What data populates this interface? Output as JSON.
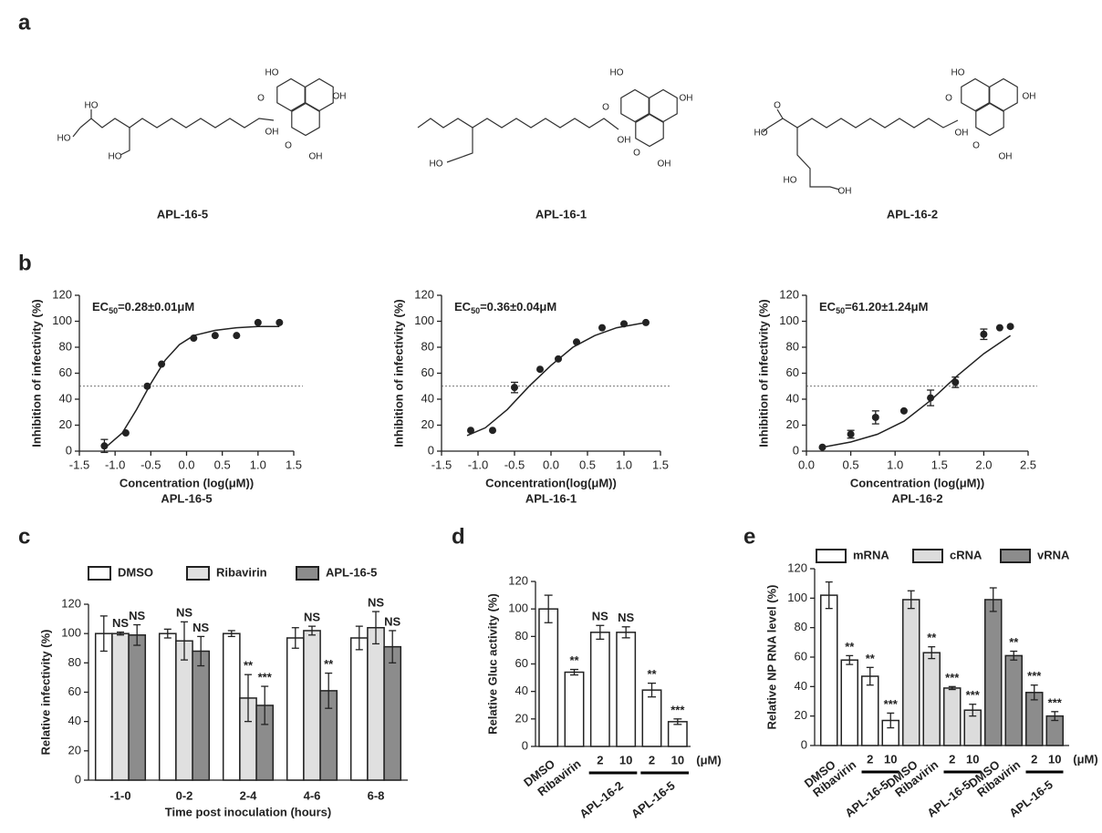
{
  "panel_labels": [
    "a",
    "b",
    "c",
    "d",
    "e"
  ],
  "structures": [
    {
      "name": "APL-16-5",
      "atoms": [
        "HO",
        "O",
        "OH",
        "OH",
        "O",
        "OH",
        "HO",
        "HO",
        "HO"
      ]
    },
    {
      "name": "APL-16-1",
      "atoms": [
        "HO",
        "O",
        "OH",
        "OH",
        "O",
        "OH",
        "HO"
      ]
    },
    {
      "name": "APL-16-2",
      "atoms": [
        "HO",
        "O",
        "OH",
        "OH",
        "O",
        "OH",
        "HO",
        "O",
        "HO",
        "OH"
      ]
    }
  ],
  "chart_data": [
    {
      "type": "scatter",
      "annotation": {
        "prefix": "EC",
        "subscript": "50",
        "text": "=0.28±0.01μM"
      },
      "ylabel": "Inhibition of infectivity (%)",
      "xlabel": "Concentration (log(μM))",
      "subtitle": "APL-16-5",
      "x": [
        -1.15,
        -0.85,
        -0.55,
        -0.35,
        0.1,
        0.4,
        0.7,
        1.0,
        1.3
      ],
      "values": [
        4,
        14,
        50,
        67,
        87,
        89,
        89,
        99,
        99
      ],
      "errors": [
        5,
        null,
        null,
        null,
        null,
        null,
        null,
        null,
        null
      ],
      "fit": {
        "x": [
          -1.15,
          -0.9,
          -0.7,
          -0.5,
          -0.3,
          -0.1,
          0.1,
          0.4,
          0.7,
          1.0,
          1.3
        ],
        "values": [
          2,
          14,
          32,
          52,
          70,
          82,
          89,
          93,
          95,
          96,
          96
        ]
      },
      "reference_line": 50,
      "color": "#222222",
      "xlim": [
        -1.5,
        1.5
      ],
      "xticks": [
        -1.5,
        {
          "value": -1,
          "label": "-1.0"
        },
        -0.5,
        {
          "value": 0,
          "label": "0.0"
        },
        0.5,
        {
          "value": 1,
          "label": "1.0"
        },
        1.5
      ],
      "ylim": [
        0,
        120
      ],
      "yticks": [
        0,
        20,
        40,
        60,
        80,
        100,
        120
      ]
    },
    {
      "type": "scatter",
      "annotation": {
        "prefix": "EC",
        "subscript": "50",
        "text": "=0.36±0.04μM"
      },
      "ylabel": "Inhibition of infectivity (%)",
      "xlabel": "Concentration(log(μM))",
      "subtitle": "APL-16-1",
      "x": [
        -1.1,
        -0.8,
        -0.5,
        -0.15,
        0.1,
        0.35,
        0.7,
        1.0,
        1.3
      ],
      "values": [
        16,
        16,
        49,
        63,
        71,
        84,
        95,
        98,
        99
      ],
      "errors": [
        null,
        null,
        4,
        null,
        null,
        null,
        null,
        null,
        null
      ],
      "fit": {
        "x": [
          -1.15,
          -0.9,
          -0.6,
          -0.3,
          0,
          0.3,
          0.6,
          0.9,
          1.3
        ],
        "values": [
          12,
          18,
          32,
          50,
          66,
          80,
          89,
          95,
          99
        ]
      },
      "reference_line": 50,
      "color": "#222222",
      "xlim": [
        -1.5,
        1.5
      ],
      "xticks": [
        -1.5,
        {
          "value": -1,
          "label": "-1.0"
        },
        -0.5,
        {
          "value": 0,
          "label": "0.0"
        },
        0.5,
        {
          "value": 1,
          "label": "1.0"
        },
        1.5
      ],
      "ylim": [
        0,
        120
      ],
      "yticks": [
        0,
        20,
        40,
        60,
        80,
        100,
        120
      ]
    },
    {
      "type": "scatter",
      "annotation": {
        "prefix": "EC",
        "subscript": "50",
        "text": "=61.20±1.24μM"
      },
      "ylabel": "Inhibition of infectivity (%)",
      "xlabel": "Concentration (log(μM))",
      "subtitle": "APL-16-2",
      "x": [
        0.18,
        0.5,
        0.78,
        1.1,
        1.4,
        1.68,
        2.0,
        2.18,
        2.3
      ],
      "values": [
        3,
        13,
        26,
        31,
        41,
        53,
        90,
        95,
        96
      ],
      "errors": [
        null,
        3,
        5,
        null,
        6,
        4,
        4,
        null,
        null
      ],
      "fit": {
        "x": [
          0.18,
          0.5,
          0.8,
          1.1,
          1.4,
          1.7,
          2.0,
          2.3
        ],
        "values": [
          3,
          7,
          13,
          23,
          39,
          58,
          75,
          89
        ]
      },
      "reference_line": 50,
      "color": "#222222",
      "xlim": [
        0,
        2.5
      ],
      "xticks": [
        {
          "value": 0,
          "label": "0.0"
        },
        0.5,
        {
          "value": 1,
          "label": "1.0"
        },
        1.5,
        {
          "value": 2,
          "label": "2.0"
        },
        2.5
      ],
      "ylim": [
        0,
        120
      ],
      "yticks": [
        0,
        20,
        40,
        60,
        80,
        100,
        120
      ]
    },
    {
      "type": "bar",
      "layout": "grouped",
      "ylabel": "Relative infectivity (%)",
      "xlabel": "Time post inoculation (hours)",
      "categories": [
        "-1-0",
        "0-2",
        "2-4",
        "4-6",
        "6-8"
      ],
      "series": [
        {
          "name": "DMSO",
          "color": "#ffffff",
          "values": [
            100,
            100,
            100,
            97,
            97
          ],
          "errors": [
            12,
            3,
            2,
            7,
            8
          ]
        },
        {
          "name": "Ribavirin",
          "color": "#e0e0e0",
          "values": [
            100,
            95,
            56,
            102,
            104
          ],
          "errors": [
            1,
            13,
            16,
            3,
            11
          ],
          "significance": [
            "NS",
            "NS",
            "**",
            "NS",
            "NS"
          ]
        },
        {
          "name": "APL-16-5",
          "color": "#8c8c8c",
          "values": [
            99,
            88,
            51,
            61,
            91
          ],
          "errors": [
            7,
            10,
            13,
            12,
            11
          ],
          "significance": [
            "NS",
            "NS",
            "***",
            "**",
            "NS"
          ]
        }
      ],
      "ylim": [
        0,
        120
      ],
      "yticks": [
        0,
        20,
        40,
        60,
        80,
        100,
        120
      ]
    },
    {
      "type": "bar",
      "layout": "single",
      "ylabel": "Relative Gluc activity (%)",
      "categories": [
        "DMSO",
        "Ribavirin",
        "2",
        "10",
        "2",
        "10"
      ],
      "groups": [
        "APL-16-2",
        "APL-16-5"
      ],
      "unit_label": "(μM)",
      "values": [
        100,
        54,
        83,
        83,
        41,
        18
      ],
      "errors": [
        10,
        2,
        5,
        4,
        5,
        2
      ],
      "significance": [
        null,
        "**",
        "NS",
        "NS",
        "**",
        "***"
      ],
      "color": "#ffffff",
      "ylim": [
        0,
        120
      ],
      "yticks": [
        0,
        20,
        40,
        60,
        80,
        100,
        120
      ]
    },
    {
      "type": "bar",
      "layout": "blocks",
      "ylabel": "Relative NP RNA level (%)",
      "categories": [
        "DMSO",
        "Ribavirin",
        "2",
        "10"
      ],
      "group_label": "APL-16-5",
      "unit_label": "(μM)",
      "series": [
        {
          "name": "mRNA",
          "color": "#ffffff",
          "values": [
            102,
            58,
            47,
            17
          ],
          "errors": [
            9,
            3,
            6,
            5
          ],
          "significance": [
            null,
            "**",
            "**",
            "***"
          ]
        },
        {
          "name": "cRNA",
          "color": "#dcdcdc",
          "values": [
            99,
            63,
            39,
            24
          ],
          "errors": [
            6,
            4,
            1,
            4
          ],
          "significance": [
            null,
            "**",
            "***",
            "***"
          ]
        },
        {
          "name": "vRNA",
          "color": "#8c8c8c",
          "values": [
            99,
            61,
            36,
            20
          ],
          "errors": [
            8,
            3,
            5,
            3
          ],
          "significance": [
            null,
            "**",
            "***",
            "***"
          ]
        }
      ],
      "ylim": [
        0,
        120
      ],
      "yticks": [
        0,
        20,
        40,
        60,
        80,
        100,
        120
      ]
    }
  ]
}
